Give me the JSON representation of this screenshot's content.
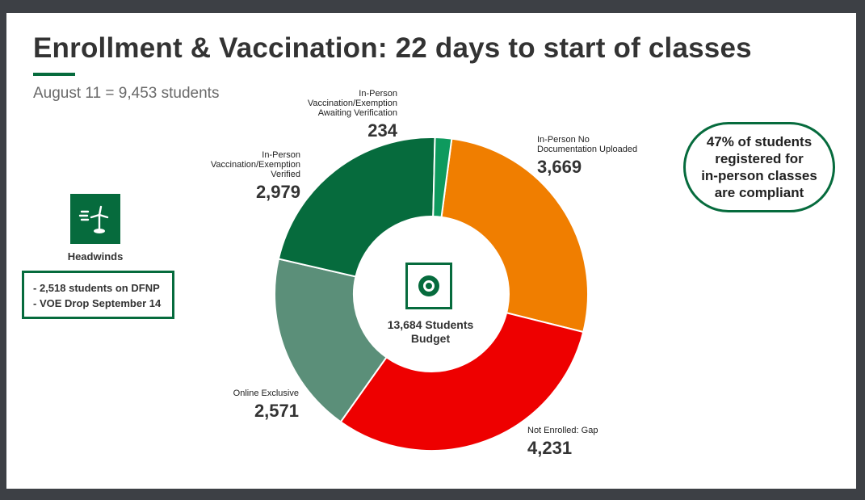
{
  "title": "Enrollment & Vaccination: 22 days to start of classes",
  "subtitle": "August 11 =  9,453 students",
  "colors": {
    "accent": "#066b3d"
  },
  "chart_data": {
    "type": "pie",
    "variant": "donut",
    "center_label": [
      "13,684 Students",
      "Budget"
    ],
    "center_icon": "target-icon",
    "slices": [
      {
        "label_lines": [
          "In-Person No",
          "Documentation Uploaded"
        ],
        "value": 3669,
        "value_label": "3,669",
        "color": "#f07e00"
      },
      {
        "label_lines": [
          "Not Enrolled: Gap"
        ],
        "value": 4231,
        "value_label": "4,231",
        "color": "#ee0000"
      },
      {
        "label_lines": [
          "Online Exclusive"
        ],
        "value": 2571,
        "value_label": "2,571",
        "color": "#5b8f79"
      },
      {
        "label_lines": [
          "In-Person",
          "Vaccination/Exemption",
          "Verified"
        ],
        "value": 2979,
        "value_label": "2,979",
        "color": "#066b3d"
      },
      {
        "label_lines": [
          "In-Person",
          "Vaccination/Exemption",
          "Awaiting Verification"
        ],
        "value": 234,
        "value_label": "234",
        "color": "#0e9a5e"
      }
    ]
  },
  "headwinds": {
    "icon": "wind-turbine-icon",
    "label": "Headwinds",
    "items": [
      "- 2,518 students on DFNP",
      "- VOE Drop September 14"
    ]
  },
  "callout": {
    "lines": [
      "47% of students",
      "registered for",
      "in-person classes",
      "are compliant"
    ]
  }
}
